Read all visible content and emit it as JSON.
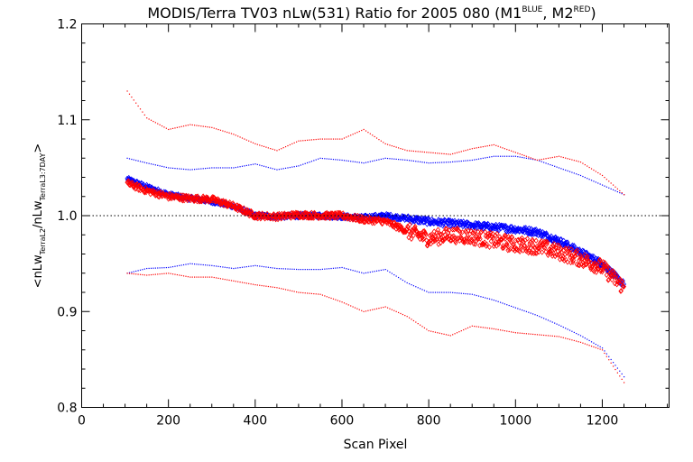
{
  "chart_data": {
    "type": "scatter",
    "title": {
      "main": "MODIS/Terra TV03 nLw(531) Ratio for 2005 080 (M1",
      "sup1": "BLUE",
      "mid": ", M2",
      "sup2": "RED",
      "end": ")"
    },
    "xlabel": "Scan Pixel",
    "ylabel": {
      "open": "<nLw",
      "sub1": "TerraL2",
      "mid": "/nLw",
      "sub2": "TerraL3:7DAY",
      "close": ">"
    },
    "xlim": [
      0,
      1354
    ],
    "ylim": [
      0.8,
      1.2
    ],
    "xticks": [
      0,
      200,
      400,
      600,
      800,
      1000,
      1200
    ],
    "xtick_labels": [
      "0",
      "200",
      "400",
      "600",
      "800",
      "1000",
      "1200"
    ],
    "yticks": [
      0.8,
      0.9,
      1.0,
      1.1,
      1.2
    ],
    "ytick_labels": [
      "0.8",
      "0.9",
      "1.0",
      "1.1",
      "1.2"
    ],
    "reference_line": 1.0,
    "grid": false,
    "colors": {
      "M1": "#0000ff",
      "M2": "#ff0000",
      "axes": "#000000"
    },
    "series": [
      {
        "name": "M1",
        "color": "#0000ff",
        "x": [
          105,
          150,
          200,
          250,
          300,
          350,
          400,
          450,
          500,
          550,
          600,
          650,
          700,
          750,
          800,
          850,
          900,
          950,
          1000,
          1050,
          1100,
          1150,
          1200,
          1250
        ],
        "mean": [
          1.038,
          1.03,
          1.022,
          1.018,
          1.015,
          1.01,
          1.0,
          0.999,
          1.0,
          1.0,
          0.999,
          0.998,
          1.0,
          0.997,
          0.994,
          0.992,
          0.99,
          0.988,
          0.986,
          0.983,
          0.974,
          0.962,
          0.95,
          0.928
        ],
        "upper": [
          1.06,
          1.055,
          1.05,
          1.048,
          1.05,
          1.05,
          1.054,
          1.048,
          1.052,
          1.06,
          1.058,
          1.055,
          1.06,
          1.058,
          1.055,
          1.056,
          1.058,
          1.062,
          1.062,
          1.058,
          1.05,
          1.042,
          1.032,
          1.022
        ],
        "lower": [
          0.94,
          0.945,
          0.946,
          0.95,
          0.948,
          0.945,
          0.948,
          0.945,
          0.944,
          0.944,
          0.946,
          0.94,
          0.944,
          0.93,
          0.92,
          0.92,
          0.918,
          0.912,
          0.904,
          0.896,
          0.886,
          0.875,
          0.862,
          0.832
        ]
      },
      {
        "name": "M2",
        "color": "#ff0000",
        "x": [
          105,
          150,
          200,
          250,
          300,
          350,
          400,
          450,
          500,
          550,
          600,
          650,
          700,
          750,
          800,
          850,
          900,
          950,
          1000,
          1050,
          1100,
          1150,
          1200,
          1250
        ],
        "mean": [
          1.034,
          1.026,
          1.02,
          1.018,
          1.017,
          1.01,
          1.0,
          0.999,
          1.001,
          1.0,
          1.0,
          0.996,
          0.994,
          0.984,
          0.976,
          0.98,
          0.978,
          0.974,
          0.97,
          0.968,
          0.962,
          0.955,
          0.946,
          0.925
        ],
        "upper": [
          1.13,
          1.102,
          1.09,
          1.095,
          1.092,
          1.085,
          1.075,
          1.068,
          1.078,
          1.08,
          1.08,
          1.09,
          1.075,
          1.068,
          1.066,
          1.064,
          1.07,
          1.074,
          1.066,
          1.058,
          1.062,
          1.056,
          1.042,
          1.022
        ],
        "lower": [
          0.94,
          0.938,
          0.94,
          0.936,
          0.936,
          0.932,
          0.928,
          0.925,
          0.92,
          0.918,
          0.91,
          0.9,
          0.905,
          0.895,
          0.88,
          0.875,
          0.885,
          0.882,
          0.878,
          0.876,
          0.874,
          0.868,
          0.86,
          0.826
        ]
      }
    ]
  }
}
